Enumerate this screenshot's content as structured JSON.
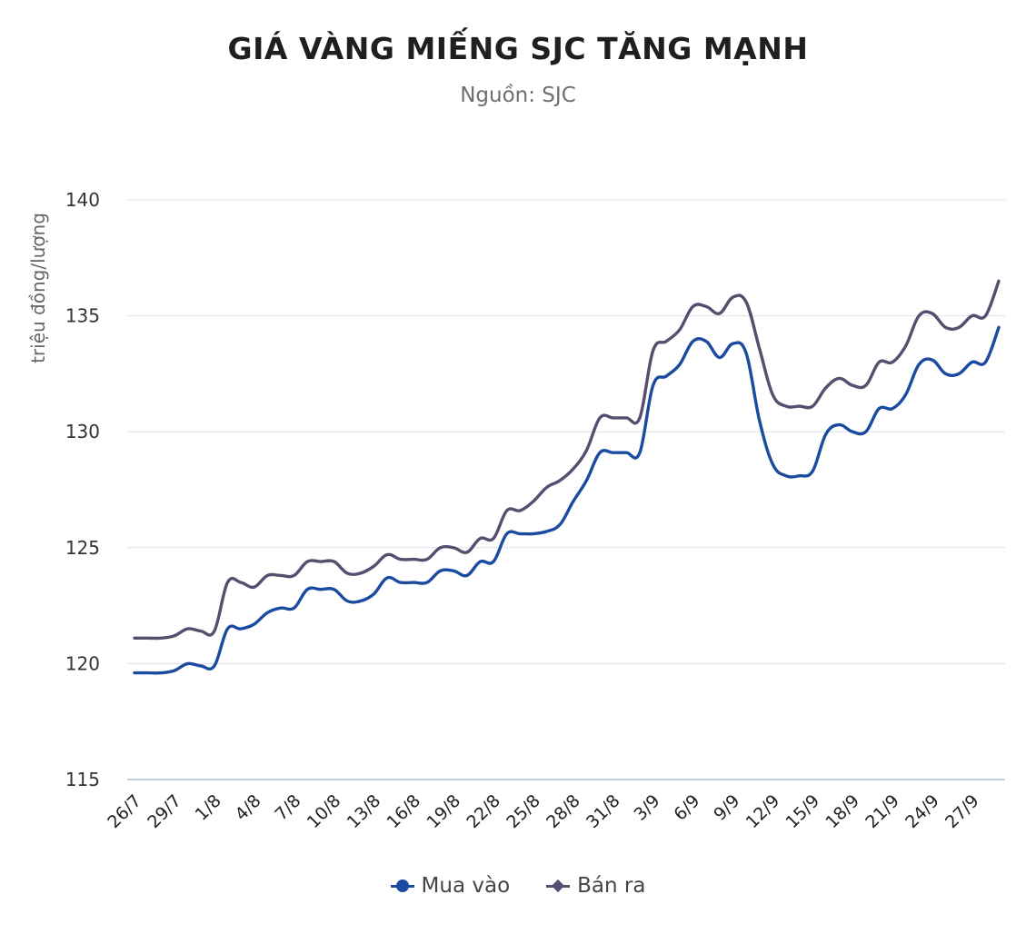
{
  "header": {
    "title": "GIÁ VÀNG MIẾNG SJC TĂNG MẠNH",
    "subtitle": "Nguồn: SJC"
  },
  "colors": {
    "buy": "#1a4ba0",
    "sell": "#574d6e",
    "grid": "#dde3ec",
    "axis": "#c3cde0"
  },
  "chart_data": {
    "type": "line",
    "title": "GIÁ VÀNG MIẾNG SJC TĂNG MẠNH",
    "subtitle": "Nguồn: SJC",
    "xlabel": "",
    "ylabel": "triệu đồng/lượng",
    "ylim": [
      115,
      140
    ],
    "yticks": [
      115,
      120,
      125,
      130,
      135,
      140
    ],
    "grid": true,
    "legend_position": "bottom",
    "x": [
      "26/7",
      "27/7",
      "28/7",
      "29/7",
      "30/7",
      "31/7",
      "1/8",
      "2/8",
      "3/8",
      "4/8",
      "5/8",
      "6/8",
      "7/8",
      "8/8",
      "9/8",
      "10/8",
      "11/8",
      "12/8",
      "13/8",
      "14/8",
      "15/8",
      "16/8",
      "17/8",
      "18/8",
      "19/8",
      "20/8",
      "21/8",
      "22/8",
      "23/8",
      "24/8",
      "25/8",
      "26/8",
      "27/8",
      "28/8",
      "29/8",
      "30/8",
      "31/8",
      "1/9",
      "2/9",
      "3/9",
      "4/9",
      "5/9",
      "6/9",
      "7/9",
      "8/9",
      "9/9",
      "10/9",
      "11/9",
      "12/9",
      "13/9",
      "14/9",
      "15/9",
      "16/9",
      "17/9",
      "18/9",
      "19/9",
      "20/9",
      "21/9",
      "22/9",
      "23/9",
      "24/9",
      "25/9",
      "26/9",
      "27/9",
      "28/9",
      "29/9"
    ],
    "xtick_labels": [
      "26/7",
      "29/7",
      "1/8",
      "4/8",
      "7/8",
      "10/8",
      "13/8",
      "16/8",
      "19/8",
      "22/8",
      "25/8",
      "28/8",
      "31/8",
      "3/9",
      "6/9",
      "9/9",
      "12/9",
      "15/9",
      "18/9",
      "21/9",
      "24/9",
      "27/9"
    ],
    "series": [
      {
        "name": "Mua vào",
        "values": [
          119.6,
          119.6,
          119.6,
          119.7,
          120.0,
          119.9,
          119.9,
          121.5,
          121.5,
          121.7,
          122.2,
          122.4,
          122.4,
          123.2,
          123.2,
          123.2,
          122.7,
          122.7,
          123.0,
          123.7,
          123.5,
          123.5,
          123.5,
          124.0,
          124.0,
          123.8,
          124.4,
          124.4,
          125.6,
          125.6,
          125.6,
          125.7,
          126.0,
          127.0,
          127.9,
          129.1,
          129.1,
          129.1,
          129.1,
          132.0,
          132.4,
          132.9,
          133.9,
          133.9,
          133.2,
          133.8,
          133.4,
          130.5,
          128.6,
          128.1,
          128.1,
          128.3,
          129.9,
          130.3,
          130.0,
          130.0,
          131.0,
          131.0,
          131.6,
          132.9,
          133.1,
          132.5,
          132.5,
          133.0,
          133.0,
          134.5
        ]
      },
      {
        "name": "Bán ra",
        "values": [
          121.1,
          121.1,
          121.1,
          121.2,
          121.5,
          121.4,
          121.4,
          123.5,
          123.5,
          123.3,
          123.8,
          123.8,
          123.8,
          124.4,
          124.4,
          124.4,
          123.9,
          123.9,
          124.2,
          124.7,
          124.5,
          124.5,
          124.5,
          125.0,
          125.0,
          124.8,
          125.4,
          125.4,
          126.6,
          126.6,
          127.0,
          127.6,
          127.9,
          128.4,
          129.2,
          130.6,
          130.6,
          130.6,
          130.6,
          133.5,
          133.9,
          134.4,
          135.4,
          135.4,
          135.1,
          135.8,
          135.6,
          133.6,
          131.6,
          131.1,
          131.1,
          131.1,
          131.9,
          132.3,
          132.0,
          132.0,
          133.0,
          133.0,
          133.7,
          135.0,
          135.1,
          134.5,
          134.5,
          135.0,
          135.0,
          136.5
        ]
      }
    ]
  }
}
